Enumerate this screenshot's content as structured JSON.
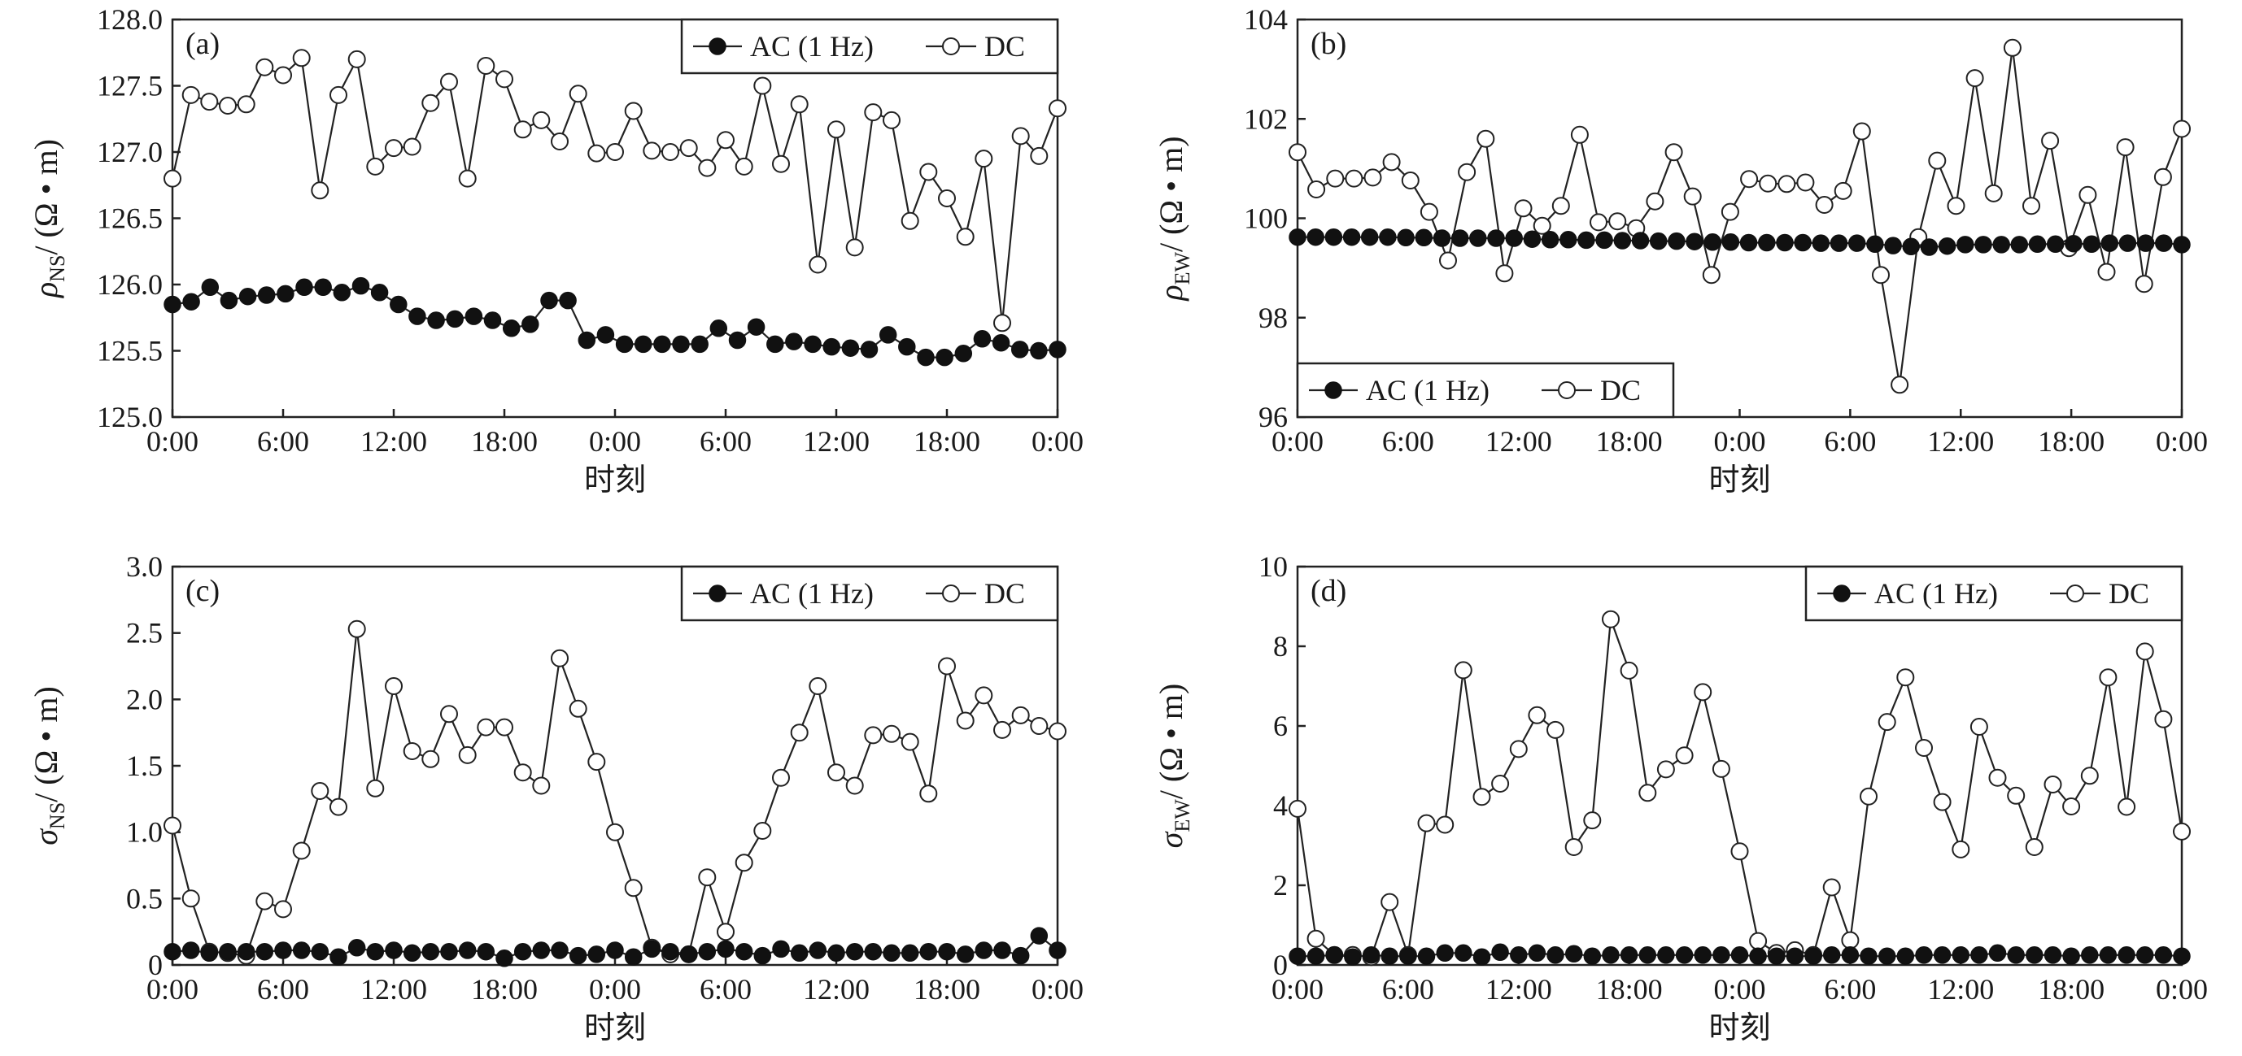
{
  "chart_data": [
    {
      "type": "line",
      "panel_label": "(a)",
      "xlabel": "时刻",
      "ylabel": {
        "symbol": "ρ",
        "subscript": "NS",
        "unit": "/ (Ω • m)"
      },
      "x_tick_labels": [
        "0:00",
        "6:00",
        "12:00",
        "18:00",
        "0:00",
        "6:00",
        "12:00",
        "18:00",
        "0:00"
      ],
      "x_range_hours": [
        0,
        48
      ],
      "ylim": [
        125.0,
        128.0
      ],
      "y_ticks": [
        125.0,
        125.5,
        126.0,
        126.5,
        127.0,
        127.5,
        128.0
      ],
      "y_tick_labels": [
        "125.0",
        "125.5",
        "126.0",
        "126.5",
        "127.0",
        "127.5",
        "128.0"
      ],
      "legend": {
        "position": "top-right",
        "entries": [
          "AC (1 Hz)",
          "DC"
        ]
      },
      "series": [
        {
          "name": "AC (1 Hz)",
          "marker": "filled",
          "values": [
            125.85,
            125.87,
            125.98,
            125.88,
            125.91,
            125.92,
            125.93,
            125.98,
            125.98,
            125.94,
            125.99,
            125.94,
            125.85,
            125.76,
            125.73,
            125.74,
            125.76,
            125.73,
            125.67,
            125.7,
            125.88,
            125.88,
            125.58,
            125.62,
            125.55,
            125.55,
            125.55,
            125.55,
            125.55,
            125.67,
            125.58,
            125.68,
            125.55,
            125.57,
            125.55,
            125.53,
            125.52,
            125.51,
            125.62,
            125.53,
            125.45,
            125.45,
            125.48,
            125.59,
            125.56,
            125.51,
            125.5,
            125.51
          ]
        },
        {
          "name": "DC",
          "marker": "open",
          "values": [
            126.8,
            127.43,
            127.38,
            127.35,
            127.36,
            127.64,
            127.58,
            127.71,
            126.71,
            127.43,
            127.7,
            126.89,
            127.03,
            127.04,
            127.37,
            127.53,
            126.8,
            127.65,
            127.55,
            127.17,
            127.24,
            127.08,
            127.44,
            126.99,
            127.0,
            127.31,
            127.01,
            127.0,
            127.03,
            126.88,
            127.09,
            126.89,
            127.5,
            126.91,
            127.36,
            126.15,
            127.17,
            126.28,
            127.3,
            127.24,
            126.48,
            126.85,
            126.65,
            126.36,
            126.95,
            125.71,
            127.12,
            126.97,
            127.33
          ]
        }
      ]
    },
    {
      "type": "line",
      "panel_label": "(b)",
      "xlabel": "时刻",
      "ylabel": {
        "symbol": "ρ",
        "subscript": "EW",
        "unit": "/ (Ω • m)"
      },
      "x_tick_labels": [
        "0:00",
        "6:00",
        "12:00",
        "18:00",
        "0:00",
        "6:00",
        "12:00",
        "18:00",
        "0:00"
      ],
      "x_range_hours": [
        0,
        48
      ],
      "ylim": [
        96,
        104
      ],
      "y_ticks": [
        96,
        98,
        100,
        102,
        104
      ],
      "y_tick_labels": [
        "96",
        "98",
        "100",
        "102",
        "104"
      ],
      "legend": {
        "position": "bottom-left",
        "entries": [
          "AC (1 Hz)",
          "DC"
        ]
      },
      "series": [
        {
          "name": "AC (1 Hz)",
          "marker": "filled",
          "values": [
            99.62,
            99.62,
            99.62,
            99.62,
            99.62,
            99.62,
            99.61,
            99.61,
            99.6,
            99.6,
            99.6,
            99.6,
            99.6,
            99.58,
            99.57,
            99.57,
            99.56,
            99.56,
            99.55,
            99.55,
            99.54,
            99.54,
            99.53,
            99.52,
            99.52,
            99.51,
            99.51,
            99.51,
            99.51,
            99.5,
            99.5,
            99.5,
            99.48,
            99.45,
            99.43,
            99.42,
            99.44,
            99.47,
            99.47,
            99.47,
            99.47,
            99.48,
            99.48,
            99.49,
            99.48,
            99.5,
            99.5,
            99.5,
            99.5,
            99.47
          ]
        },
        {
          "name": "DC",
          "marker": "open",
          "values": [
            101.33,
            100.58,
            100.8,
            100.8,
            100.82,
            101.13,
            100.76,
            100.13,
            99.15,
            100.93,
            101.6,
            98.89,
            100.2,
            99.85,
            100.25,
            101.68,
            99.92,
            99.94,
            99.8,
            100.34,
            101.33,
            100.44,
            98.86,
            100.13,
            100.79,
            100.7,
            100.69,
            100.72,
            100.27,
            100.55,
            101.75,
            98.86,
            96.65,
            99.62,
            101.16,
            100.25,
            102.82,
            100.5,
            103.43,
            100.25,
            101.56,
            99.4,
            100.47,
            98.92,
            101.43,
            98.68,
            100.83,
            101.8
          ]
        }
      ]
    },
    {
      "type": "line",
      "panel_label": "(c)",
      "xlabel": "时刻",
      "ylabel": {
        "symbol": "σ",
        "subscript": "NS",
        "unit": "/ (Ω • m)"
      },
      "x_tick_labels": [
        "0:00",
        "6:00",
        "12:00",
        "18:00",
        "0:00",
        "6:00",
        "12:00",
        "18:00",
        "0:00"
      ],
      "x_range_hours": [
        0,
        48
      ],
      "ylim": [
        0,
        3.0
      ],
      "y_ticks": [
        0,
        0.5,
        1.0,
        1.5,
        2.0,
        2.5,
        3.0
      ],
      "y_tick_labels": [
        "0",
        "0.5",
        "1.0",
        "1.5",
        "2.0",
        "2.5",
        "3.0"
      ],
      "legend": {
        "position": "top-right",
        "entries": [
          "AC (1 Hz)",
          "DC"
        ]
      },
      "series": [
        {
          "name": "AC (1 Hz)",
          "marker": "filled",
          "values": [
            0.1,
            0.11,
            0.09,
            0.1,
            0.1,
            0.1,
            0.11,
            0.11,
            0.1,
            0.06,
            0.13,
            0.1,
            0.11,
            0.09,
            0.1,
            0.1,
            0.11,
            0.1,
            0.05,
            0.1,
            0.11,
            0.11,
            0.07,
            0.08,
            0.11,
            0.06,
            0.12,
            0.1,
            0.08,
            0.1,
            0.12,
            0.1,
            0.07,
            0.12,
            0.09,
            0.11,
            0.09,
            0.1,
            0.1,
            0.09,
            0.09,
            0.1,
            0.1,
            0.08,
            0.11,
            0.11,
            0.07,
            0.22,
            0.11
          ]
        },
        {
          "name": "DC",
          "marker": "open",
          "values": [
            1.05,
            0.5,
            0.1,
            0.09,
            0.07,
            0.48,
            0.42,
            0.86,
            1.31,
            1.19,
            2.53,
            1.33,
            2.1,
            1.61,
            1.55,
            1.89,
            1.58,
            1.79,
            1.79,
            1.45,
            1.35,
            2.31,
            1.93,
            1.53,
            1.0,
            0.58,
            0.13,
            0.08,
            0.08,
            0.66,
            0.25,
            0.77,
            1.01,
            1.41,
            1.75,
            2.1,
            1.45,
            1.35,
            1.73,
            1.74,
            1.68,
            1.29,
            2.25,
            1.84,
            2.03,
            1.77,
            1.88,
            1.8,
            1.76
          ]
        }
      ]
    },
    {
      "type": "line",
      "panel_label": "(d)",
      "xlabel": "时刻",
      "ylabel": {
        "symbol": "σ",
        "subscript": "EW",
        "unit": "/ (Ω • m)"
      },
      "x_tick_labels": [
        "0:00",
        "6:00",
        "12:00",
        "18:00",
        "0:00",
        "6:00",
        "12:00",
        "18:00",
        "0:00"
      ],
      "x_range_hours": [
        0,
        48
      ],
      "ylim": [
        0,
        10
      ],
      "y_ticks": [
        0,
        2,
        4,
        6,
        8,
        10
      ],
      "y_tick_labels": [
        "0",
        "2",
        "4",
        "6",
        "8",
        "10"
      ],
      "legend": {
        "position": "top-right",
        "entries": [
          "AC (1 Hz)",
          "DC"
        ]
      },
      "series": [
        {
          "name": "AC (1 Hz)",
          "marker": "filled",
          "values": [
            0.22,
            0.22,
            0.25,
            0.2,
            0.25,
            0.22,
            0.22,
            0.22,
            0.3,
            0.3,
            0.2,
            0.32,
            0.25,
            0.3,
            0.25,
            0.28,
            0.22,
            0.25,
            0.25,
            0.25,
            0.25,
            0.25,
            0.25,
            0.25,
            0.25,
            0.22,
            0.22,
            0.22,
            0.22,
            0.25,
            0.25,
            0.22,
            0.22,
            0.22,
            0.25,
            0.25,
            0.25,
            0.25,
            0.3,
            0.25,
            0.25,
            0.25,
            0.22,
            0.25,
            0.25,
            0.25,
            0.25,
            0.25,
            0.22
          ]
        },
        {
          "name": "DC",
          "marker": "open",
          "values": [
            3.92,
            0.66,
            0.25,
            0.25,
            0.2,
            1.58,
            0.25,
            3.56,
            3.52,
            7.4,
            4.22,
            4.55,
            5.42,
            6.27,
            5.9,
            2.96,
            3.63,
            8.68,
            7.39,
            4.32,
            4.91,
            5.26,
            6.85,
            4.92,
            2.85,
            0.6,
            0.3,
            0.37,
            0.25,
            1.95,
            0.62,
            4.23,
            6.1,
            7.22,
            5.45,
            4.09,
            2.9,
            5.98,
            4.7,
            4.25,
            2.96,
            4.53,
            3.98,
            4.75,
            7.22,
            3.97,
            7.87,
            6.17,
            3.35
          ]
        }
      ]
    }
  ]
}
